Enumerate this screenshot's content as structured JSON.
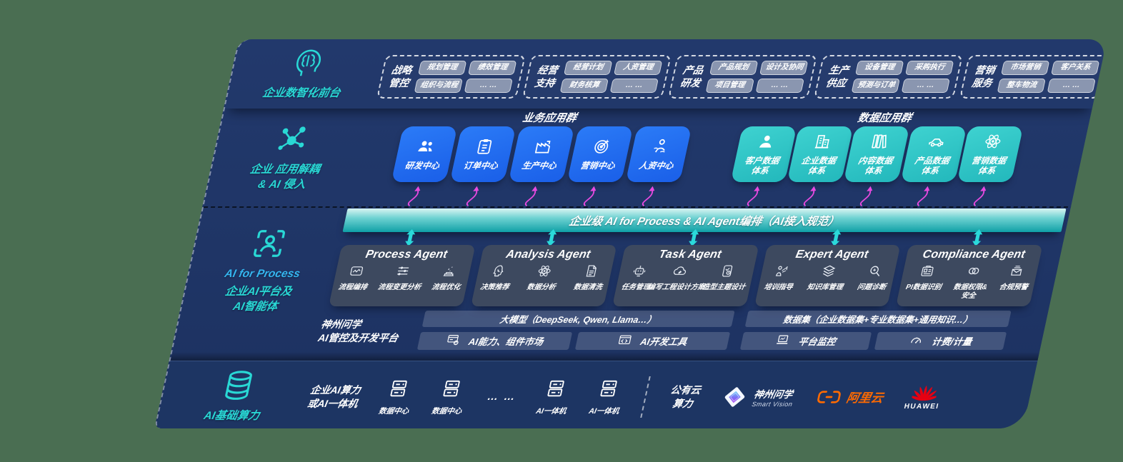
{
  "colors": {
    "accent_teal": "#29d8d5",
    "app_blue": "#1e6ff2",
    "data_teal": "#2fc7c9",
    "arrow_magenta": "#e84ae0",
    "bar_teal": "#0fa0a6",
    "aliyun_orange": "#ff6a00",
    "huawei_red": "#e60012",
    "bg_navy": "#1f3566",
    "page_bg": "#4a6e52"
  },
  "front_office": {
    "title": "企业数智化前台",
    "icon": "brain-head-icon",
    "groups": [
      {
        "title": "战略管控",
        "chips": [
          "规划管理",
          "绩效管理",
          "组织与流程",
          "… …"
        ]
      },
      {
        "title": "经营支持",
        "chips": [
          "经营计划",
          "人资管理",
          "财务核算",
          "… …"
        ]
      },
      {
        "title": "产品研发",
        "chips": [
          "产品规划",
          "设计及协同",
          "项目管理",
          "… …"
        ]
      },
      {
        "title": "生产供应",
        "chips": [
          "设备管理",
          "采购执行",
          "预测与订单",
          "… …"
        ]
      },
      {
        "title": "营销服务",
        "chips": [
          "市场营销",
          "客户关系",
          "整车物流",
          "… …"
        ]
      }
    ]
  },
  "app_layer": {
    "title": "企业 应用解耦\n& AI 侵入",
    "icon": "molecule-icon",
    "business": {
      "header": "业务应用群",
      "apps": [
        {
          "label": "研发中心",
          "icon": "team-icon"
        },
        {
          "label": "订单中心",
          "icon": "clipboard-icon"
        },
        {
          "label": "生产中心",
          "icon": "factory-icon"
        },
        {
          "label": "营销中心",
          "icon": "target-icon"
        },
        {
          "label": "人资中心",
          "icon": "hr-icon"
        }
      ]
    },
    "data": {
      "header": "数据应用群",
      "apps": [
        {
          "label": "客户数据\n体系",
          "icon": "person-icon"
        },
        {
          "label": "企业数据\n体系",
          "icon": "building-icon"
        },
        {
          "label": "内容数据\n体系",
          "icon": "books-icon"
        },
        {
          "label": "产品数据\n体系",
          "icon": "car-icon"
        },
        {
          "label": "营销数据\n体系",
          "icon": "atom-icon"
        }
      ]
    }
  },
  "orchestration": {
    "label": "企业级 AI for Process & AI Agent编排（AI接入规范）"
  },
  "agent_layer": {
    "title_en": "AI for Process",
    "title_cn": "企业AI平台及\nAI智能体",
    "icon": "person-frame-icon",
    "agents": [
      {
        "title": "Process Agent",
        "items": [
          {
            "label": "流程编排",
            "icon": "flow-chart-icon"
          },
          {
            "label": "流程变更分析",
            "icon": "sliders-icon"
          },
          {
            "label": "流程优化",
            "icon": "optimize-icon"
          }
        ]
      },
      {
        "title": "Analysis Agent",
        "items": [
          {
            "label": "决策推荐",
            "icon": "decision-head-icon"
          },
          {
            "label": "数据分析",
            "icon": "atom-icon"
          },
          {
            "label": "数据清洗",
            "icon": "doc-clean-icon"
          }
        ]
      },
      {
        "title": "Task Agent",
        "items": [
          {
            "label": "任务管理",
            "icon": "robot-icon"
          },
          {
            "label": "编写工程设计方案",
            "icon": "cloud-edit-icon"
          },
          {
            "label": "造型主题设计",
            "icon": "tablet-design-icon"
          }
        ]
      },
      {
        "title": "Expert Agent",
        "items": [
          {
            "label": "培训指导",
            "icon": "training-icon"
          },
          {
            "label": "知识库管理",
            "icon": "layers-icon"
          },
          {
            "label": "问题诊断",
            "icon": "diagnose-icon"
          }
        ]
      },
      {
        "title": "Compliance Agent",
        "items": [
          {
            "label": "PI数据识别",
            "icon": "id-card-icon"
          },
          {
            "label": "数据权限&\n安全",
            "icon": "rings-icon"
          },
          {
            "label": "合规预警",
            "icon": "mail-alert-icon"
          }
        ]
      }
    ]
  },
  "platform_layer": {
    "title": "神州问学\nAI管控及开发平台",
    "model_bar": "大模型（DeepSeek, Qwen, Llama…）",
    "left_cells": [
      {
        "label": "AI能力、组件市场",
        "icon": "market-icon"
      },
      {
        "label": "AI开发工具",
        "icon": "devtools-icon"
      }
    ],
    "dataset_bar": "数据集（企业数据集+专业数据集+通用知识…）",
    "right_cells": [
      {
        "label": "平台监控",
        "icon": "monitor-icon"
      },
      {
        "label": "计费/计量",
        "icon": "gauge-icon"
      }
    ]
  },
  "compute_layer": {
    "title": "AI基础算力",
    "icon": "database-icon",
    "local": "企业AI算力\n或AI一体机",
    "datacenters": [
      {
        "label": "数据中心",
        "icon": "server-icon"
      },
      {
        "label": "数据中心",
        "icon": "server-icon"
      }
    ],
    "dots": "… …",
    "appliances": [
      {
        "label": "AI一体机",
        "icon": "server-icon"
      },
      {
        "label": "AI一体机",
        "icon": "server-icon"
      }
    ],
    "public_cloud": "公有云\n算力",
    "vendors": {
      "smartvision": {
        "name": "神州问学",
        "sub": "Smart Vision"
      },
      "aliyun": {
        "name": "阿里云"
      },
      "huawei": {
        "name": "HUAWEI"
      }
    }
  }
}
